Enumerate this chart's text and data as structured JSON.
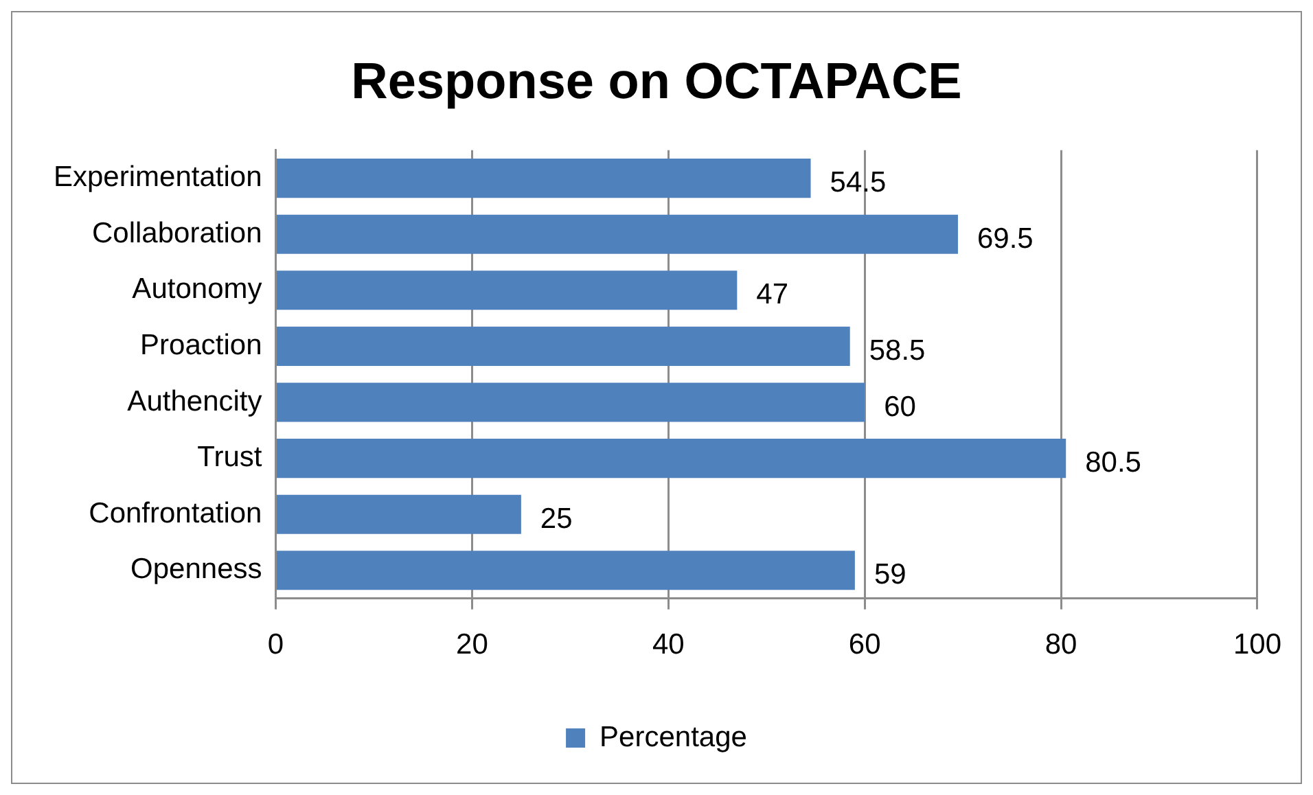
{
  "chart_data": {
    "type": "bar",
    "title": "Response on OCTAPACE",
    "orientation": "horizontal",
    "categories": [
      "Experimentation",
      "Collaboration",
      "Autonomy",
      "Proaction",
      "Authencity",
      "Trust",
      "Confrontation",
      "Openness"
    ],
    "series": [
      {
        "name": "Percentage",
        "color": "#4f81bd",
        "values": [
          54.5,
          69.5,
          47,
          58.5,
          60,
          80.5,
          25,
          59
        ]
      }
    ],
    "xlim": [
      0,
      100
    ],
    "xticks": [
      0,
      20,
      40,
      60,
      80,
      100
    ],
    "grid": "x",
    "legend": "bottom",
    "data_labels": true
  }
}
